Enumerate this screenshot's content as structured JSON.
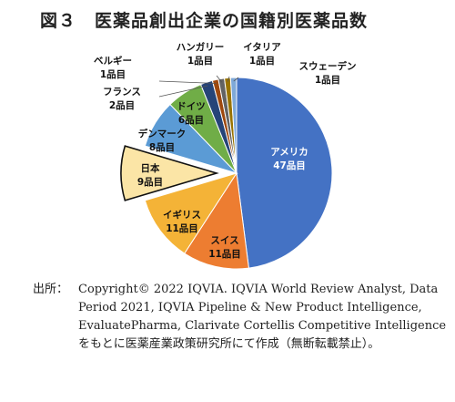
{
  "title": "図３　医薬品創出企業の国籍別医薬品数",
  "source": {
    "label": "出所：",
    "text": "Copyright© 2022 IQVIA. IQVIA World Review Analyst, Data Period 2021, IQVIA Pipeline & New Product Intelligence, EvaluatePharma, Clarivate Cortellis Competitive Intelligence をもとに医薬産業政策研究所にて作成（無断転載禁止）。"
  },
  "chart_data": {
    "type": "pie",
    "unit": "品目",
    "slices": [
      {
        "label": "アメリカ",
        "value": 47,
        "value_label": "47品目",
        "color": "#4472c4",
        "exploded": false
      },
      {
        "label": "スイス",
        "value": 11,
        "value_label": "11品目",
        "color": "#ed7d31",
        "exploded": false
      },
      {
        "label": "イギリス",
        "value": 11,
        "value_label": "11品目",
        "color": "#f4b337",
        "exploded": false
      },
      {
        "label": "日本",
        "value": 9,
        "value_label": "9品目",
        "color": "#fbe5a6",
        "exploded": true
      },
      {
        "label": "デンマーク",
        "value": 8,
        "value_label": "8品目",
        "color": "#5b9bd5",
        "exploded": false
      },
      {
        "label": "ドイツ",
        "value": 6,
        "value_label": "6品目",
        "color": "#70ad47",
        "exploded": false
      },
      {
        "label": "フランス",
        "value": 2,
        "value_label": "2品目",
        "color": "#264478",
        "exploded": false
      },
      {
        "label": "ベルギー",
        "value": 1,
        "value_label": "1品目",
        "color": "#9e480e",
        "exploded": false
      },
      {
        "label": "ハンガリー",
        "value": 1,
        "value_label": "1品目",
        "color": "#636363",
        "exploded": false
      },
      {
        "label": "イタリア",
        "value": 1,
        "value_label": "1品目",
        "color": "#997300",
        "exploded": false
      },
      {
        "label": "スウェーデン",
        "value": 1,
        "value_label": "1品目",
        "color": "#7fa9d8",
        "exploded": false
      }
    ]
  }
}
